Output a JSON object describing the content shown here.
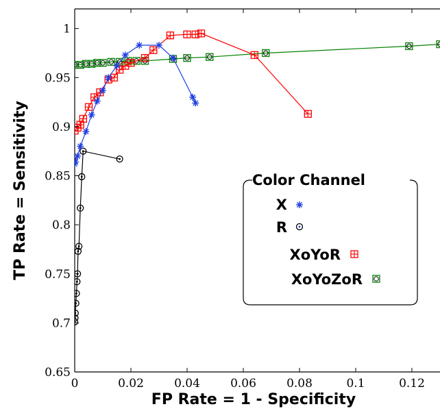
{
  "chart_data": {
    "type": "line",
    "xlabel": "FP Rate = 1 - Specificity",
    "ylabel": "TP Rate = Sensitivity",
    "xlim": [
      0,
      0.13
    ],
    "ylim": [
      0.65,
      1.02
    ],
    "x_ticks": [
      0,
      0.02,
      0.04,
      0.06,
      0.08,
      0.1,
      0.12
    ],
    "x_tick_labels": [
      "0",
      "0.02",
      "0.04",
      "0.06",
      "0.08",
      "0.1",
      "0.12"
    ],
    "y_ticks": [
      0.65,
      0.7,
      0.75,
      0.8,
      0.85,
      0.9,
      0.95,
      1
    ],
    "y_tick_labels": [
      "0.65",
      "0.7",
      "0.75",
      "0.8",
      "0.85",
      "0.9",
      "0.95",
      "1"
    ],
    "grid": false,
    "legend": {
      "title": "Color Channel",
      "position": "lower-right"
    },
    "series": [
      {
        "name": "X",
        "color": "#1f3fe0",
        "marker": "asterisk",
        "points": [
          [
            0.0,
            0.862
          ],
          [
            0.0003,
            0.864
          ],
          [
            0.001,
            0.87
          ],
          [
            0.002,
            0.88
          ],
          [
            0.004,
            0.895
          ],
          [
            0.006,
            0.912
          ],
          [
            0.008,
            0.926
          ],
          [
            0.01,
            0.937
          ],
          [
            0.012,
            0.95
          ],
          [
            0.015,
            0.962
          ],
          [
            0.018,
            0.973
          ],
          [
            0.023,
            0.983
          ],
          [
            0.03,
            0.983
          ],
          [
            0.035,
            0.97
          ],
          [
            0.042,
            0.93
          ],
          [
            0.043,
            0.924
          ]
        ]
      },
      {
        "name": "R",
        "color": "#000000",
        "marker": "dotted-circle",
        "points": [
          [
            0.016,
            0.867
          ],
          [
            0.003,
            0.875
          ],
          [
            0.0025,
            0.849
          ],
          [
            0.002,
            0.817
          ],
          [
            0.0015,
            0.778
          ],
          [
            0.0012,
            0.773
          ],
          [
            0.001,
            0.75
          ],
          [
            0.0008,
            0.742
          ],
          [
            0.0006,
            0.73
          ],
          [
            0.0004,
            0.72
          ],
          [
            0.0002,
            0.71
          ],
          [
            0.0001,
            0.705
          ],
          [
            0.0,
            0.701
          ]
        ]
      },
      {
        "name": "XoYoR",
        "color": "#ff0000",
        "marker": "square-plus",
        "points": [
          [
            0.0,
            0.896
          ],
          [
            0.001,
            0.899
          ],
          [
            0.002,
            0.902
          ],
          [
            0.003,
            0.908
          ],
          [
            0.005,
            0.92
          ],
          [
            0.007,
            0.93
          ],
          [
            0.009,
            0.935
          ],
          [
            0.012,
            0.948
          ],
          [
            0.014,
            0.95
          ],
          [
            0.016,
            0.958
          ],
          [
            0.018,
            0.962
          ],
          [
            0.02,
            0.965
          ],
          [
            0.025,
            0.97
          ],
          [
            0.028,
            0.978
          ],
          [
            0.034,
            0.993
          ],
          [
            0.04,
            0.994
          ],
          [
            0.043,
            0.994
          ],
          [
            0.045,
            0.995
          ],
          [
            0.064,
            0.973
          ],
          [
            0.083,
            0.913
          ]
        ]
      },
      {
        "name": "XoYoZoR",
        "color": "#008000",
        "marker": "square-circle",
        "points": [
          [
            0.0,
            0.963
          ],
          [
            0.002,
            0.963
          ],
          [
            0.004,
            0.964
          ],
          [
            0.006,
            0.964
          ],
          [
            0.008,
            0.965
          ],
          [
            0.01,
            0.965
          ],
          [
            0.013,
            0.966
          ],
          [
            0.016,
            0.966
          ],
          [
            0.019,
            0.967
          ],
          [
            0.022,
            0.967
          ],
          [
            0.025,
            0.967
          ],
          [
            0.035,
            0.969
          ],
          [
            0.04,
            0.97
          ],
          [
            0.048,
            0.971
          ],
          [
            0.068,
            0.975
          ],
          [
            0.119,
            0.982
          ],
          [
            0.13,
            0.984
          ]
        ]
      }
    ]
  }
}
